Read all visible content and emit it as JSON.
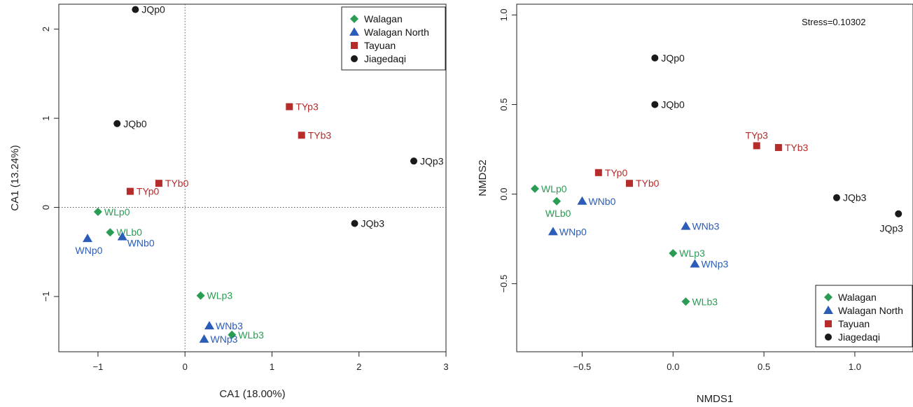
{
  "colors": {
    "Walagan": "#2a9c54",
    "Walagan North": "#2a5cb8",
    "Tayuan": "#b52c2a",
    "Jiagedaqi": "#1a1a1a"
  },
  "groups": [
    {
      "name": "Walagan",
      "marker": "diamond"
    },
    {
      "name": "Walagan North",
      "marker": "triangle"
    },
    {
      "name": "Tayuan",
      "marker": "square"
    },
    {
      "name": "Jiagedaqi",
      "marker": "circle"
    }
  ],
  "chart_data": [
    {
      "type": "scatter",
      "title": "",
      "xlabel": "CA1 (18.00%)",
      "ylabel": "CA1 (13.24%)",
      "xlim": [
        -1.45,
        3
      ],
      "ylim": [
        -1.62,
        2.28
      ],
      "xticks": [
        -1,
        0,
        1,
        2,
        3
      ],
      "yticks": [
        -1,
        0,
        1,
        2
      ],
      "xtick_labels": [
        "−1",
        "0",
        "1",
        "2",
        "3"
      ],
      "ytick_labels": [
        "−1",
        "0",
        "1",
        "2"
      ],
      "reference_lines": {
        "x": 0,
        "y": 0
      },
      "legend": {
        "position": "top-right",
        "entries": [
          "Walagan",
          "Walagan North",
          "Tayuan",
          "Jiagedaqi"
        ]
      },
      "points": [
        {
          "label": "JQp0",
          "group": "Jiagedaqi",
          "x": -0.57,
          "y": 2.22,
          "lpos": "r"
        },
        {
          "label": "JQb0",
          "group": "Jiagedaqi",
          "x": -0.78,
          "y": 0.94,
          "lpos": "r"
        },
        {
          "label": "JQp3",
          "group": "Jiagedaqi",
          "x": 2.63,
          "y": 0.52,
          "lpos": "r"
        },
        {
          "label": "JQb3",
          "group": "Jiagedaqi",
          "x": 1.95,
          "y": -0.18,
          "lpos": "r"
        },
        {
          "label": "TYp3",
          "group": "Tayuan",
          "x": 1.2,
          "y": 1.13,
          "lpos": "r"
        },
        {
          "label": "TYb3",
          "group": "Tayuan",
          "x": 1.34,
          "y": 0.81,
          "lpos": "r"
        },
        {
          "label": "TYp0",
          "group": "Tayuan",
          "x": -0.63,
          "y": 0.18,
          "lpos": "r"
        },
        {
          "label": "TYb0",
          "group": "Tayuan",
          "x": -0.3,
          "y": 0.27,
          "lpos": "r"
        },
        {
          "label": "WLp0",
          "group": "Walagan",
          "x": -1.0,
          "y": -0.05,
          "lpos": "r"
        },
        {
          "label": "WLb0",
          "group": "Walagan",
          "x": -0.86,
          "y": -0.28,
          "lpos": "r"
        },
        {
          "label": "WLp3",
          "group": "Walagan",
          "x": 0.18,
          "y": -0.99,
          "lpos": "r"
        },
        {
          "label": "WLb3",
          "group": "Walagan",
          "x": 0.54,
          "y": -1.43,
          "lpos": "r"
        },
        {
          "label": "WNp0",
          "group": "Walagan North",
          "x": -1.12,
          "y": -0.35,
          "lpos": "b"
        },
        {
          "label": "WNb0",
          "group": "Walagan North",
          "x": -0.72,
          "y": -0.33,
          "lpos": "br"
        },
        {
          "label": "WNb3",
          "group": "Walagan North",
          "x": 0.28,
          "y": -1.33,
          "lpos": "r"
        },
        {
          "label": "WNp3",
          "group": "Walagan North",
          "x": 0.22,
          "y": -1.48,
          "lpos": "r"
        }
      ]
    },
    {
      "type": "scatter",
      "title": "",
      "xlabel": "NMDS1",
      "ylabel": "NMDS2",
      "xlim": [
        -0.86,
        1.32
      ],
      "ylim": [
        -0.88,
        1.06
      ],
      "xticks": [
        -0.5,
        0.0,
        0.5,
        1.0
      ],
      "yticks": [
        -0.5,
        0.0,
        0.5,
        1.0
      ],
      "xtick_labels": [
        "−0.5",
        "0.0",
        "0.5",
        "1.0"
      ],
      "ytick_labels": [
        "−0.5",
        "0.0",
        "0.5",
        "1.0"
      ],
      "annotation": "Stress=0.10302",
      "legend": {
        "position": "bottom-right",
        "entries": [
          "Walagan",
          "Walagan North",
          "Tayuan",
          "Jiagedaqi"
        ]
      },
      "points": [
        {
          "label": "JQp0",
          "group": "Jiagedaqi",
          "x": -0.1,
          "y": 0.76,
          "lpos": "r"
        },
        {
          "label": "JQb0",
          "group": "Jiagedaqi",
          "x": -0.1,
          "y": 0.5,
          "lpos": "r"
        },
        {
          "label": "JQb3",
          "group": "Jiagedaqi",
          "x": 0.9,
          "y": -0.02,
          "lpos": "r"
        },
        {
          "label": "JQp3",
          "group": "Jiagedaqi",
          "x": 1.24,
          "y": -0.11,
          "lpos": "bl"
        },
        {
          "label": "TYp3",
          "group": "Tayuan",
          "x": 0.46,
          "y": 0.27,
          "lpos": "t"
        },
        {
          "label": "TYb3",
          "group": "Tayuan",
          "x": 0.58,
          "y": 0.26,
          "lpos": "r"
        },
        {
          "label": "TYp0",
          "group": "Tayuan",
          "x": -0.41,
          "y": 0.12,
          "lpos": "r"
        },
        {
          "label": "TYb0",
          "group": "Tayuan",
          "x": -0.24,
          "y": 0.06,
          "lpos": "r"
        },
        {
          "label": "WLp0",
          "group": "Walagan",
          "x": -0.76,
          "y": 0.03,
          "lpos": "r"
        },
        {
          "label": "WLb0",
          "group": "Walagan",
          "x": -0.64,
          "y": -0.04,
          "lpos": "b"
        },
        {
          "label": "WLp3",
          "group": "Walagan",
          "x": 0.0,
          "y": -0.33,
          "lpos": "r"
        },
        {
          "label": "WLb3",
          "group": "Walagan",
          "x": 0.07,
          "y": -0.6,
          "lpos": "r"
        },
        {
          "label": "WNb0",
          "group": "Walagan North",
          "x": -0.5,
          "y": -0.04,
          "lpos": "r"
        },
        {
          "label": "WNp0",
          "group": "Walagan North",
          "x": -0.66,
          "y": -0.21,
          "lpos": "r"
        },
        {
          "label": "WNb3",
          "group": "Walagan North",
          "x": 0.07,
          "y": -0.18,
          "lpos": "r"
        },
        {
          "label": "WNp3",
          "group": "Walagan North",
          "x": 0.12,
          "y": -0.39,
          "lpos": "r"
        }
      ]
    }
  ]
}
